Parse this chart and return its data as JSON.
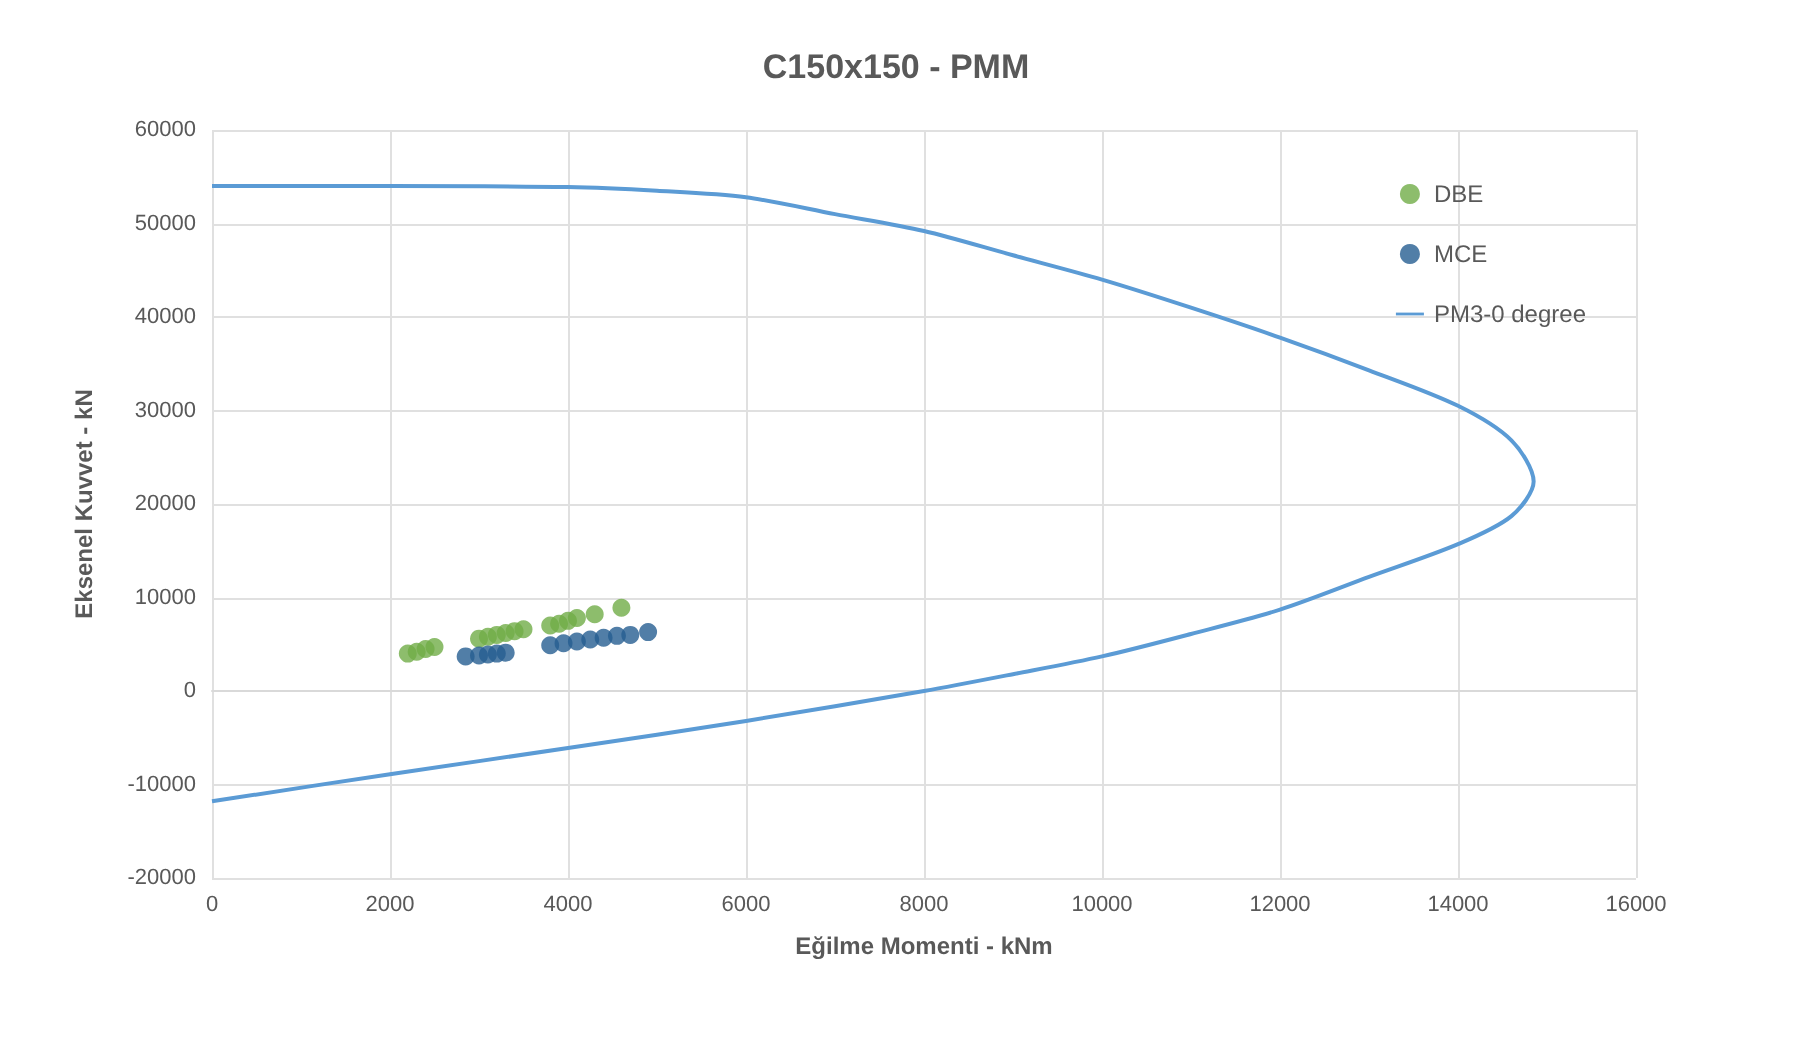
{
  "chart_data": {
    "type": "scatter",
    "title": "C150x150 - PMM",
    "xlabel": "Eğilme Momenti - kNm",
    "ylabel": "Eksenel Kuvvet - kN",
    "xlim": [
      0,
      16000
    ],
    "xticks": [
      0,
      2000,
      4000,
      6000,
      8000,
      10000,
      12000,
      14000,
      16000
    ],
    "ylim": [
      -20000,
      60000
    ],
    "yticks": [
      -20000,
      -10000,
      0,
      10000,
      20000,
      30000,
      40000,
      50000,
      60000
    ],
    "grid": true,
    "legend": "top right",
    "series": [
      {
        "name": "DBE",
        "marker": "circle",
        "color": "#70ad47",
        "x": [
          2200,
          2300,
          2400,
          2500,
          3000,
          3100,
          3200,
          3300,
          3400,
          3500,
          3800,
          3900,
          4000,
          4100,
          4300,
          4600
        ],
        "values": [
          4000,
          4200,
          4500,
          4700,
          5600,
          5800,
          6000,
          6200,
          6400,
          6600,
          7000,
          7200,
          7500,
          7800,
          8200,
          8900
        ]
      },
      {
        "name": "MCE",
        "marker": "circle",
        "color": "#255e91",
        "x": [
          2850,
          3000,
          3100,
          3200,
          3300,
          3800,
          3950,
          4100,
          4250,
          4400,
          4550,
          4700,
          4900
        ],
        "values": [
          3700,
          3800,
          3900,
          4000,
          4100,
          4900,
          5100,
          5300,
          5500,
          5700,
          5900,
          6000,
          6300
        ]
      },
      {
        "name": "PM3-0 degree",
        "type": "line",
        "marker": "none",
        "line_style": "solid",
        "color": "#5b9bd5",
        "x": [
          0,
          2000,
          4000,
          5000,
          6000,
          7000,
          8000,
          9000,
          10000,
          11000,
          12000,
          13000,
          14000,
          14600,
          14850,
          14600,
          14000,
          13000,
          12000,
          11000,
          10000,
          9000,
          8000,
          6000,
          4000,
          2000,
          0
        ],
        "values": [
          54000,
          54000,
          53900,
          53500,
          52800,
          51000,
          49200,
          46600,
          44000,
          41000,
          37800,
          34300,
          30500,
          26800,
          22400,
          18700,
          15700,
          12200,
          8700,
          6100,
          3700,
          1800,
          0,
          -3200,
          -6100,
          -8900,
          -11800
        ]
      }
    ]
  }
}
